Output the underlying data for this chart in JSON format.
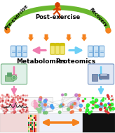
{
  "bg_color": "#ffffff",
  "top_text_center": "Post-exercise",
  "top_text_left": "Pre-exercise",
  "top_text_right": "Recovery",
  "label_metabolomics": "Metabolomics",
  "label_proteomics": "Proteomics",
  "arc_color_green": "#6ab82e",
  "orange": "#f5821e",
  "pink": "#f07db0",
  "cyan": "#6dcff6",
  "figsize": [
    1.64,
    1.89
  ],
  "dpi": 100
}
